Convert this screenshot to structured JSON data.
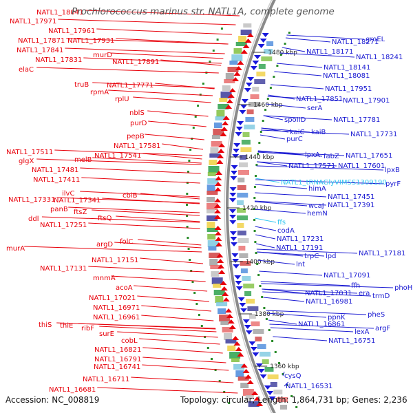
{
  "title": "Prochlorococcus marinus str. NATL1A, complete genome",
  "footer": {
    "accession": "Accession: NC_008819",
    "topology": "Topology: circular; Length: 1,864,731 bp; Genes: 2,236"
  },
  "colors": {
    "left_label": "#e8000a",
    "right_label": "#1a1ad2",
    "rna_label": "#31c6f0",
    "forward_arrow": "#e8000a",
    "reverse_arrow": "#1818dc",
    "backbone": "#8a8a8a"
  },
  "kbp_markers": [
    "1480 kbp",
    "1460 kbp",
    "1440 kbp",
    "1420 kbp",
    "1400 kbp",
    "1380 kbp",
    "1360 kbp"
  ],
  "left_labels": [
    "NATL1_18041",
    "NATL1_17971",
    "NATL1_17961",
    "NATL1_17871",
    "NATL1_17931",
    "NATL1_17841",
    "murD",
    "NATL1_17831",
    "NATL1_17891",
    "elaC",
    "truB",
    "NATL1_17771",
    "rpmA",
    "rplU",
    "nblS",
    "purD",
    "pepB",
    "NATL1_17581",
    "NATL1_17511",
    "NATL1_17541",
    "glgX",
    "melB",
    "NATL1_17481",
    "NATL1_17411",
    "ilvC",
    "cbiB",
    "NATL1_17331",
    "NATL1_17341",
    "panB",
    "ftsZ",
    "ddl",
    "ftsQ",
    "NATL1_17251",
    "folC",
    "argD",
    "murA",
    "NATL1_17151",
    "NATL1_17131",
    "mnmA",
    "acoA",
    "NATL1_17021",
    "NATL1_16971",
    "NATL1_16961",
    "thiS",
    "thiE",
    "ribF",
    "surE",
    "cobL",
    "NATL1_16821",
    "NATL1_16791",
    "NATL1_16741",
    "NATL1_16711",
    "NATL1_16681"
  ],
  "right_labels": [
    "NATL1_18271",
    "groEL",
    "NATL1_18171",
    "NATL1_18241",
    "NATL1_18141",
    "NATL1_18081",
    "NATL1_17951",
    "NATL1_17851",
    "NATL1_17901",
    "serA",
    "spoIID",
    "NATL1_17781",
    "kaiC",
    "kaiB",
    "NATL1_17731",
    "purC",
    "lpxA",
    "fabZ",
    "NATL1_17651",
    "NATL1_17571",
    "NATL1_17601",
    "lpxB",
    "NATL1_tRNAGlyVIMSS1309190",
    "pyrF",
    "himA",
    "NATL1_17451",
    "wcaJ",
    "NATL1_17391",
    "hemN",
    "ffs",
    "codA",
    "NATL1_17231",
    "NATL1_17191",
    "trpC",
    "lpd",
    "NATL1_17181",
    "lnt",
    "NATL1_17091",
    "ffh",
    "phoH",
    "NATL1_17031",
    "era",
    "trmD",
    "NATL1_16981",
    "pheS",
    "ppnK",
    "NATL1_16861",
    "argF",
    "lexA",
    "NATL1_16751",
    "cysQ",
    "NATL1_16531"
  ]
}
